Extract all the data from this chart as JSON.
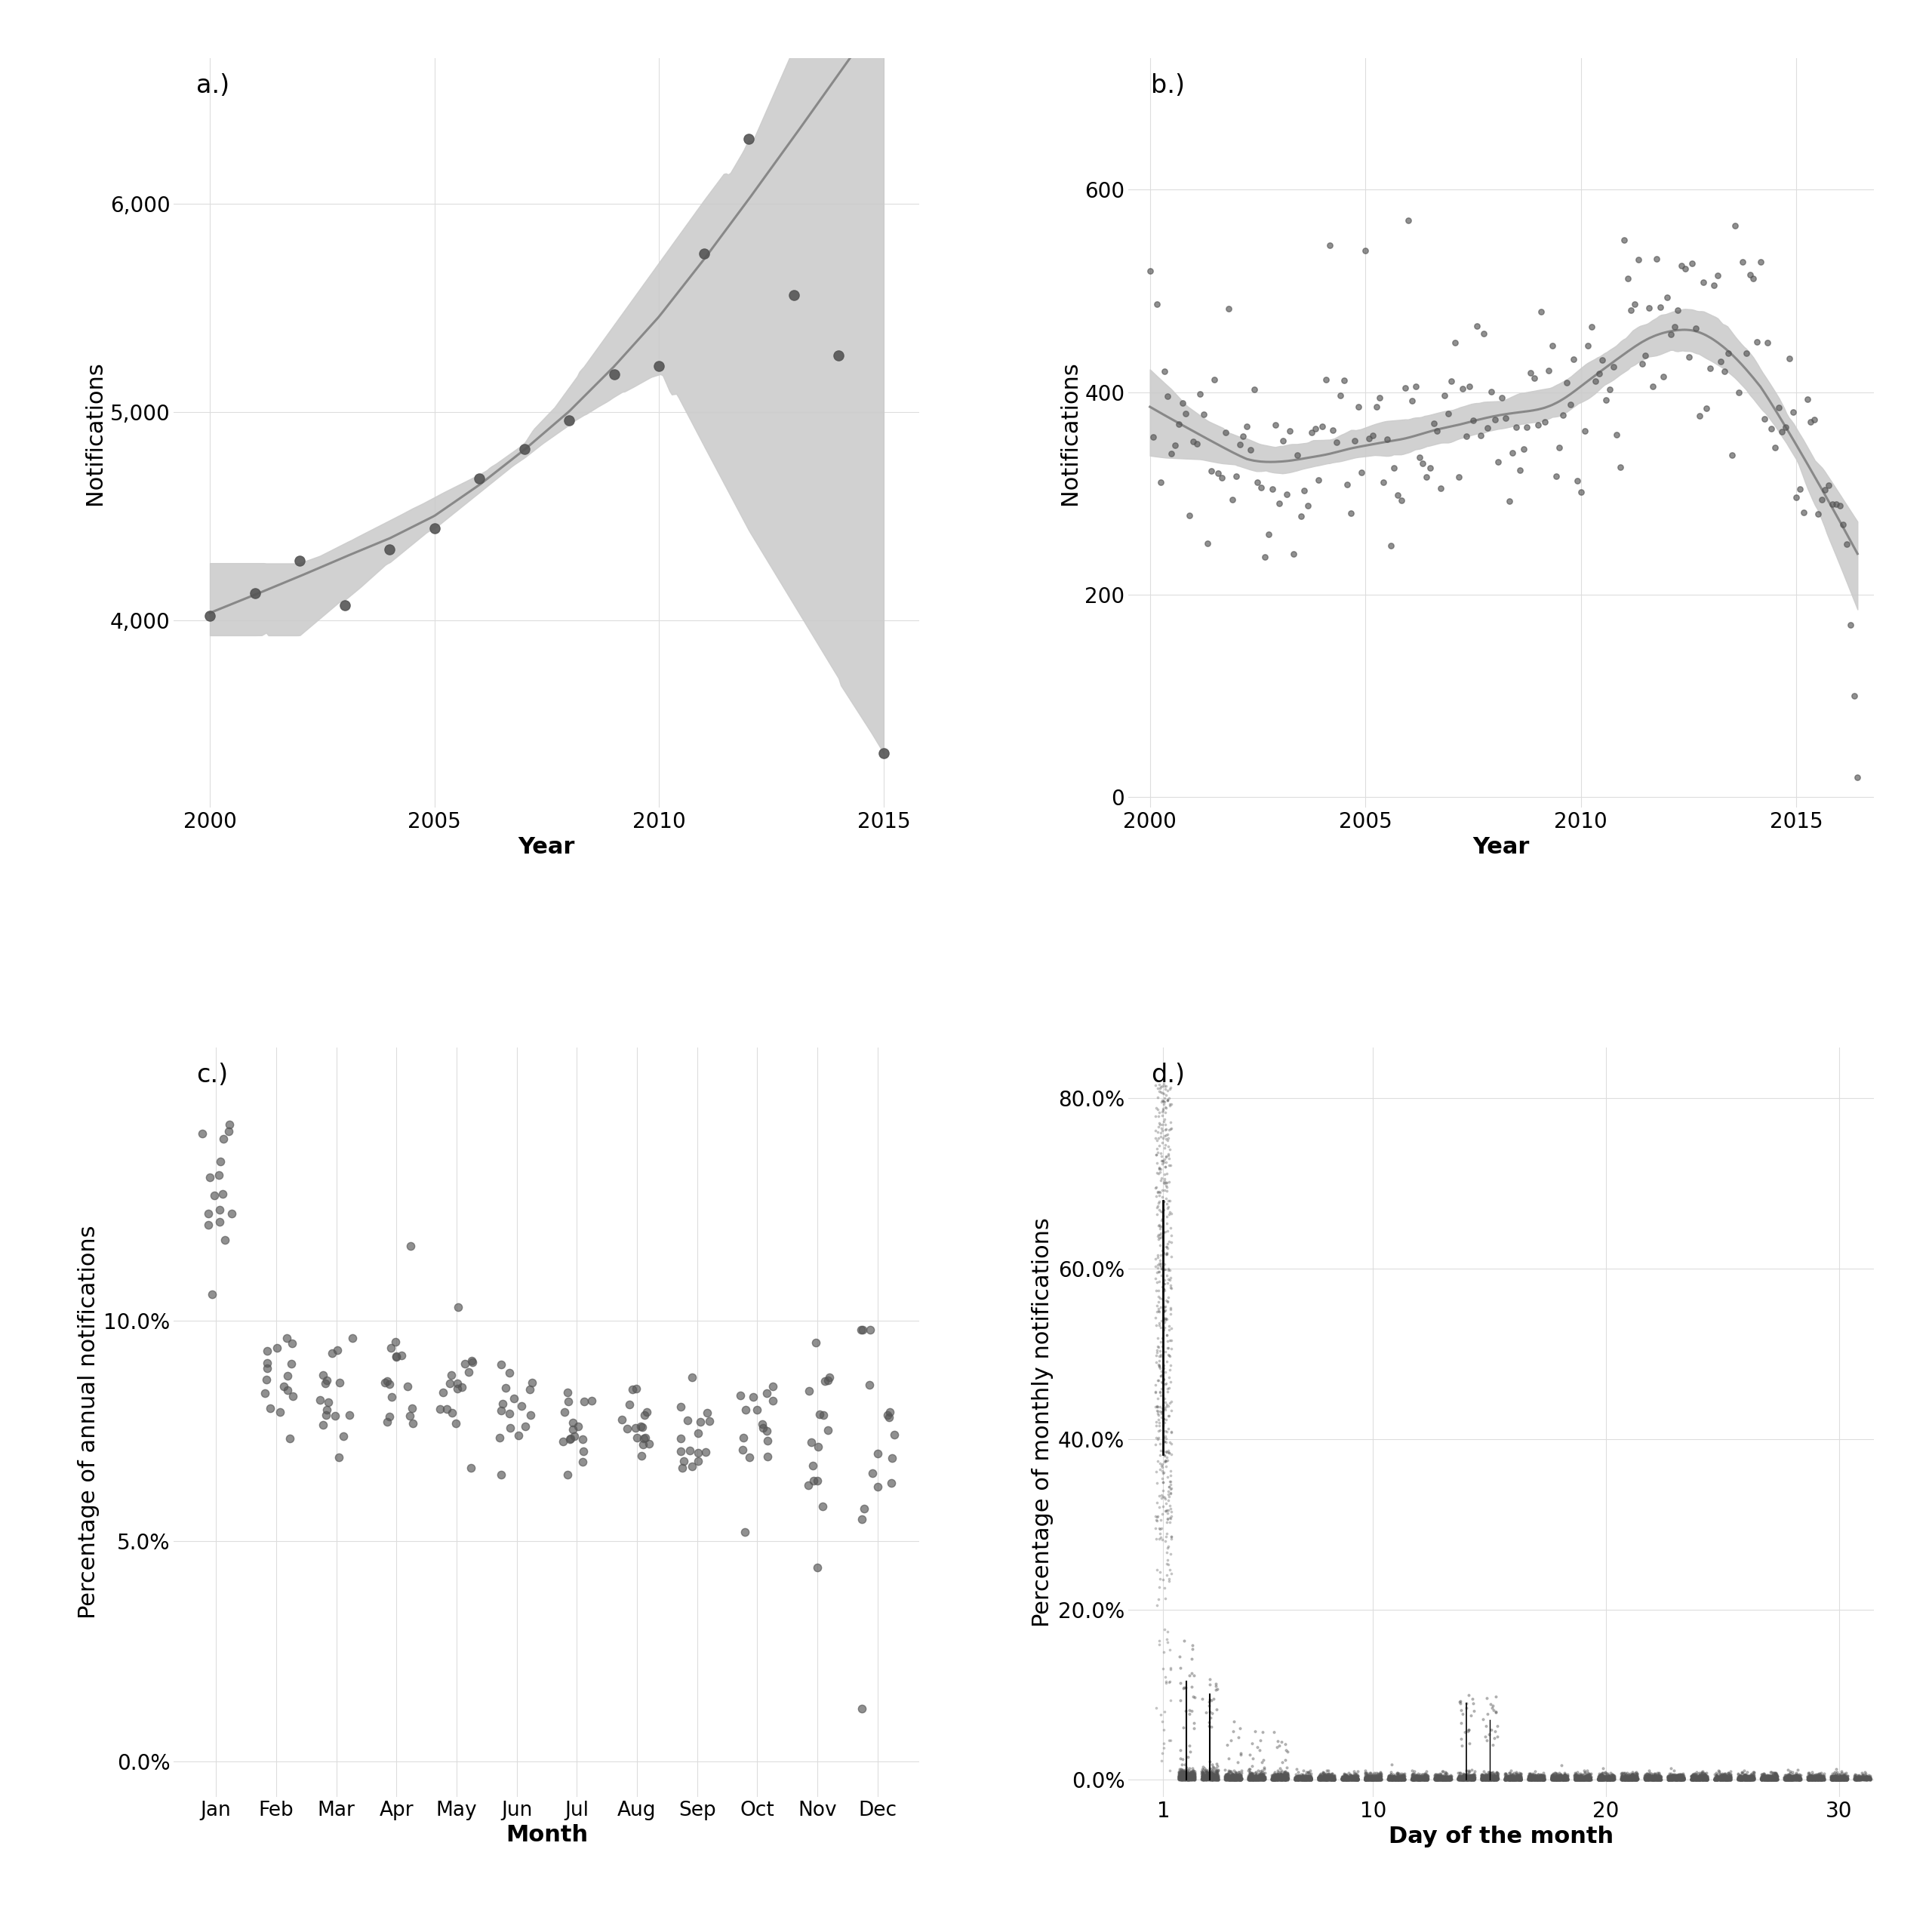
{
  "panel_a": {
    "title": "a.)",
    "xlabel": "Year",
    "ylabel": "Notifications",
    "years": [
      2000,
      2001,
      2002,
      2003,
      2004,
      2005,
      2006,
      2007,
      2008,
      2009,
      2010,
      2011,
      2012,
      2013,
      2014,
      2015
    ],
    "values": [
      4020,
      4130,
      4285,
      4070,
      4340,
      4440,
      4680,
      4820,
      4960,
      5180,
      5220,
      5760,
      6310,
      5560,
      5270,
      3360
    ],
    "ylim": [
      3100,
      6700
    ],
    "yticks": [
      4000,
      5000,
      6000
    ],
    "xlim": [
      1999.2,
      2015.8
    ],
    "xticks": [
      2000,
      2005,
      2010,
      2015
    ]
  },
  "panel_b": {
    "title": "b.)",
    "xlabel": "Year",
    "ylabel": "Notifications",
    "ylim": [
      -10,
      730
    ],
    "yticks": [
      0,
      200,
      400,
      600
    ],
    "xlim": [
      1999.5,
      2016.8
    ],
    "xticks": [
      2000,
      2005,
      2010,
      2015
    ]
  },
  "panel_c": {
    "title": "c.)",
    "xlabel": "Month",
    "ylabel": "Percentage of annual notifications",
    "months": [
      "Jan",
      "Feb",
      "Mar",
      "Apr",
      "May",
      "Jun",
      "Jul",
      "Aug",
      "Sep",
      "Oct",
      "Nov",
      "Dec"
    ],
    "ylim": [
      -0.008,
      0.162
    ],
    "yticks": [
      0.0,
      0.05,
      0.1
    ],
    "yticklabels": [
      "0.0%",
      "5.0%",
      "10.0%"
    ]
  },
  "panel_d": {
    "title": "d.)",
    "xlabel": "Day of the month",
    "ylabel": "Percentage of monthly notifications",
    "ylim": [
      -0.02,
      0.86
    ],
    "yticks": [
      0.0,
      0.2,
      0.4,
      0.6,
      0.8
    ],
    "yticklabels": [
      "0.0%",
      "20.0%",
      "40.0%",
      "60.0%",
      "80.0%"
    ],
    "xlim": [
      -0.5,
      31.5
    ]
  },
  "dot_color": "#555555",
  "line_color": "#888888",
  "ci_color": "#cccccc",
  "background_color": "#ffffff",
  "grid_color": "#dddddd",
  "font_size": 22,
  "label_size": 20
}
